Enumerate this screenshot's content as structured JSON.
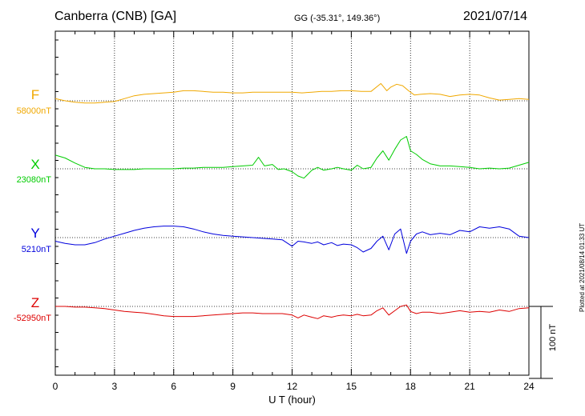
{
  "header": {
    "station": "Canberra (CNB)  [GA]",
    "coords": "GG (-35.31°, 149.36°)",
    "date": "2021/07/14"
  },
  "footer": {
    "plotted": "Plotted at 2021/08/14 01:33 UT"
  },
  "chart_data": {
    "type": "line",
    "xlabel": "U T (hour)",
    "xlim": [
      0,
      24
    ],
    "xticks": [
      "0",
      "3",
      "6",
      "9",
      "12",
      "15",
      "18",
      "21",
      "24"
    ],
    "scale_bar": {
      "label": "100 nT",
      "value_nT": 100
    },
    "series": [
      {
        "name": "F",
        "baseline_label": "58000nT",
        "baseline": 58000,
        "color": "#f0a800",
        "x": [
          0,
          0.5,
          1,
          1.5,
          2,
          2.5,
          3,
          3.5,
          4,
          4.5,
          5,
          5.5,
          6,
          6.5,
          7,
          7.5,
          8,
          8.5,
          9,
          9.5,
          10,
          10.5,
          11,
          11.5,
          12,
          12.5,
          13,
          13.5,
          14,
          14.5,
          15,
          15.5,
          16,
          16.5,
          16.8,
          17,
          17.3,
          17.6,
          17.9,
          18.2,
          18.5,
          19,
          19.5,
          20,
          20.5,
          21,
          21.5,
          22,
          22.5,
          23,
          23.5,
          24
        ],
        "values": [
          58003,
          58000,
          57998,
          57997,
          57997,
          57998,
          57999,
          58003,
          58007,
          58009,
          58010,
          58011,
          58012,
          58014,
          58014,
          58013,
          58012,
          58012,
          58011,
          58011,
          58012,
          58012,
          58012,
          58012,
          58012,
          58011,
          58012,
          58013,
          58013,
          58014,
          58014,
          58013,
          58013,
          58024,
          58014,
          58019,
          58023,
          58021,
          58014,
          58008,
          58009,
          58010,
          58009,
          58006,
          58008,
          58009,
          58008,
          58004,
          58001,
          58002,
          58003,
          58002
        ]
      },
      {
        "name": "X",
        "baseline_label": "23080nT",
        "baseline": 23080,
        "color": "#00cc00",
        "x": [
          0,
          0.5,
          1,
          1.5,
          2,
          2.5,
          3,
          3.5,
          4,
          4.5,
          5,
          5.5,
          6,
          6.5,
          7,
          7.5,
          8,
          8.5,
          9,
          9.5,
          10,
          10.3,
          10.6,
          11,
          11.3,
          11.6,
          12,
          12.3,
          12.6,
          13,
          13.3,
          13.6,
          14,
          14.3,
          14.6,
          15,
          15.3,
          15.6,
          16,
          16.3,
          16.6,
          16.9,
          17.2,
          17.5,
          17.8,
          18,
          18.3,
          18.6,
          19,
          19.5,
          20,
          20.5,
          21,
          21.5,
          22,
          22.5,
          23,
          23.5,
          24
        ],
        "values": [
          23099,
          23095,
          23088,
          23082,
          23080,
          23080,
          23079,
          23079,
          23079,
          23080,
          23080,
          23080,
          23080,
          23081,
          23081,
          23082,
          23082,
          23082,
          23083,
          23084,
          23085,
          23096,
          23084,
          23086,
          23079,
          23080,
          23076,
          23070,
          23067,
          23078,
          23082,
          23078,
          23080,
          23082,
          23080,
          23078,
          23085,
          23080,
          23082,
          23095,
          23105,
          23092,
          23107,
          23120,
          23125,
          23105,
          23100,
          23093,
          23087,
          23084,
          23084,
          23083,
          23082,
          23080,
          23081,
          23080,
          23081,
          23085,
          23089
        ]
      },
      {
        "name": "Y",
        "baseline_label": "5210nT",
        "baseline": 5210,
        "color": "#0000dd",
        "x": [
          0,
          0.5,
          1,
          1.5,
          2,
          2.5,
          3,
          3.5,
          4,
          4.5,
          5,
          5.5,
          6,
          6.5,
          7,
          7.5,
          8,
          8.5,
          9,
          9.5,
          10,
          10.5,
          11,
          11.5,
          12,
          12.3,
          12.6,
          13,
          13.3,
          13.6,
          14,
          14.3,
          14.6,
          15,
          15.3,
          15.6,
          16,
          16.3,
          16.6,
          16.9,
          17.2,
          17.5,
          17.8,
          18,
          18.3,
          18.6,
          19,
          19.5,
          20,
          20.5,
          21,
          21.5,
          22,
          22.5,
          23,
          23.5,
          24
        ],
        "values": [
          5205,
          5202,
          5200,
          5200,
          5203,
          5208,
          5212,
          5216,
          5220,
          5223,
          5225,
          5226,
          5226,
          5225,
          5222,
          5218,
          5215,
          5213,
          5212,
          5211,
          5210,
          5209,
          5208,
          5207,
          5198,
          5205,
          5204,
          5202,
          5204,
          5200,
          5203,
          5199,
          5201,
          5200,
          5196,
          5190,
          5195,
          5205,
          5212,
          5193,
          5215,
          5222,
          5188,
          5205,
          5215,
          5218,
          5214,
          5216,
          5214,
          5220,
          5218,
          5225,
          5223,
          5225,
          5222,
          5212,
          5210
        ]
      },
      {
        "name": "Z",
        "baseline_label": "-52950nT",
        "baseline": -52950,
        "color": "#dd0000",
        "x": [
          0,
          0.5,
          1,
          1.5,
          2,
          2.5,
          3,
          3.5,
          4,
          4.5,
          5,
          5.5,
          6,
          6.5,
          7,
          7.5,
          8,
          8.5,
          9,
          9.5,
          10,
          10.5,
          11,
          11.5,
          12,
          12.3,
          12.6,
          13,
          13.3,
          13.6,
          14,
          14.3,
          14.6,
          15,
          15.3,
          15.6,
          16,
          16.3,
          16.6,
          16.9,
          17.2,
          17.5,
          17.8,
          18,
          18.3,
          18.6,
          19,
          19.5,
          20,
          20.5,
          21,
          21.5,
          22,
          22.5,
          23,
          23.5,
          24
        ],
        "values": [
          -52950,
          -52950,
          -52951,
          -52951,
          -52952,
          -52953,
          -52955,
          -52957,
          -52958,
          -52959,
          -52961,
          -52963,
          -52964,
          -52964,
          -52964,
          -52963,
          -52962,
          -52961,
          -52960,
          -52959,
          -52959,
          -52960,
          -52960,
          -52960,
          -52962,
          -52966,
          -52962,
          -52965,
          -52967,
          -52963,
          -52965,
          -52963,
          -52962,
          -52963,
          -52961,
          -52963,
          -52962,
          -52956,
          -52952,
          -52962,
          -52956,
          -52950,
          -52948,
          -52957,
          -52960,
          -52958,
          -52958,
          -52960,
          -52958,
          -52956,
          -52958,
          -52957,
          -52958,
          -52955,
          -52957,
          -52953,
          -52952
        ]
      }
    ]
  }
}
